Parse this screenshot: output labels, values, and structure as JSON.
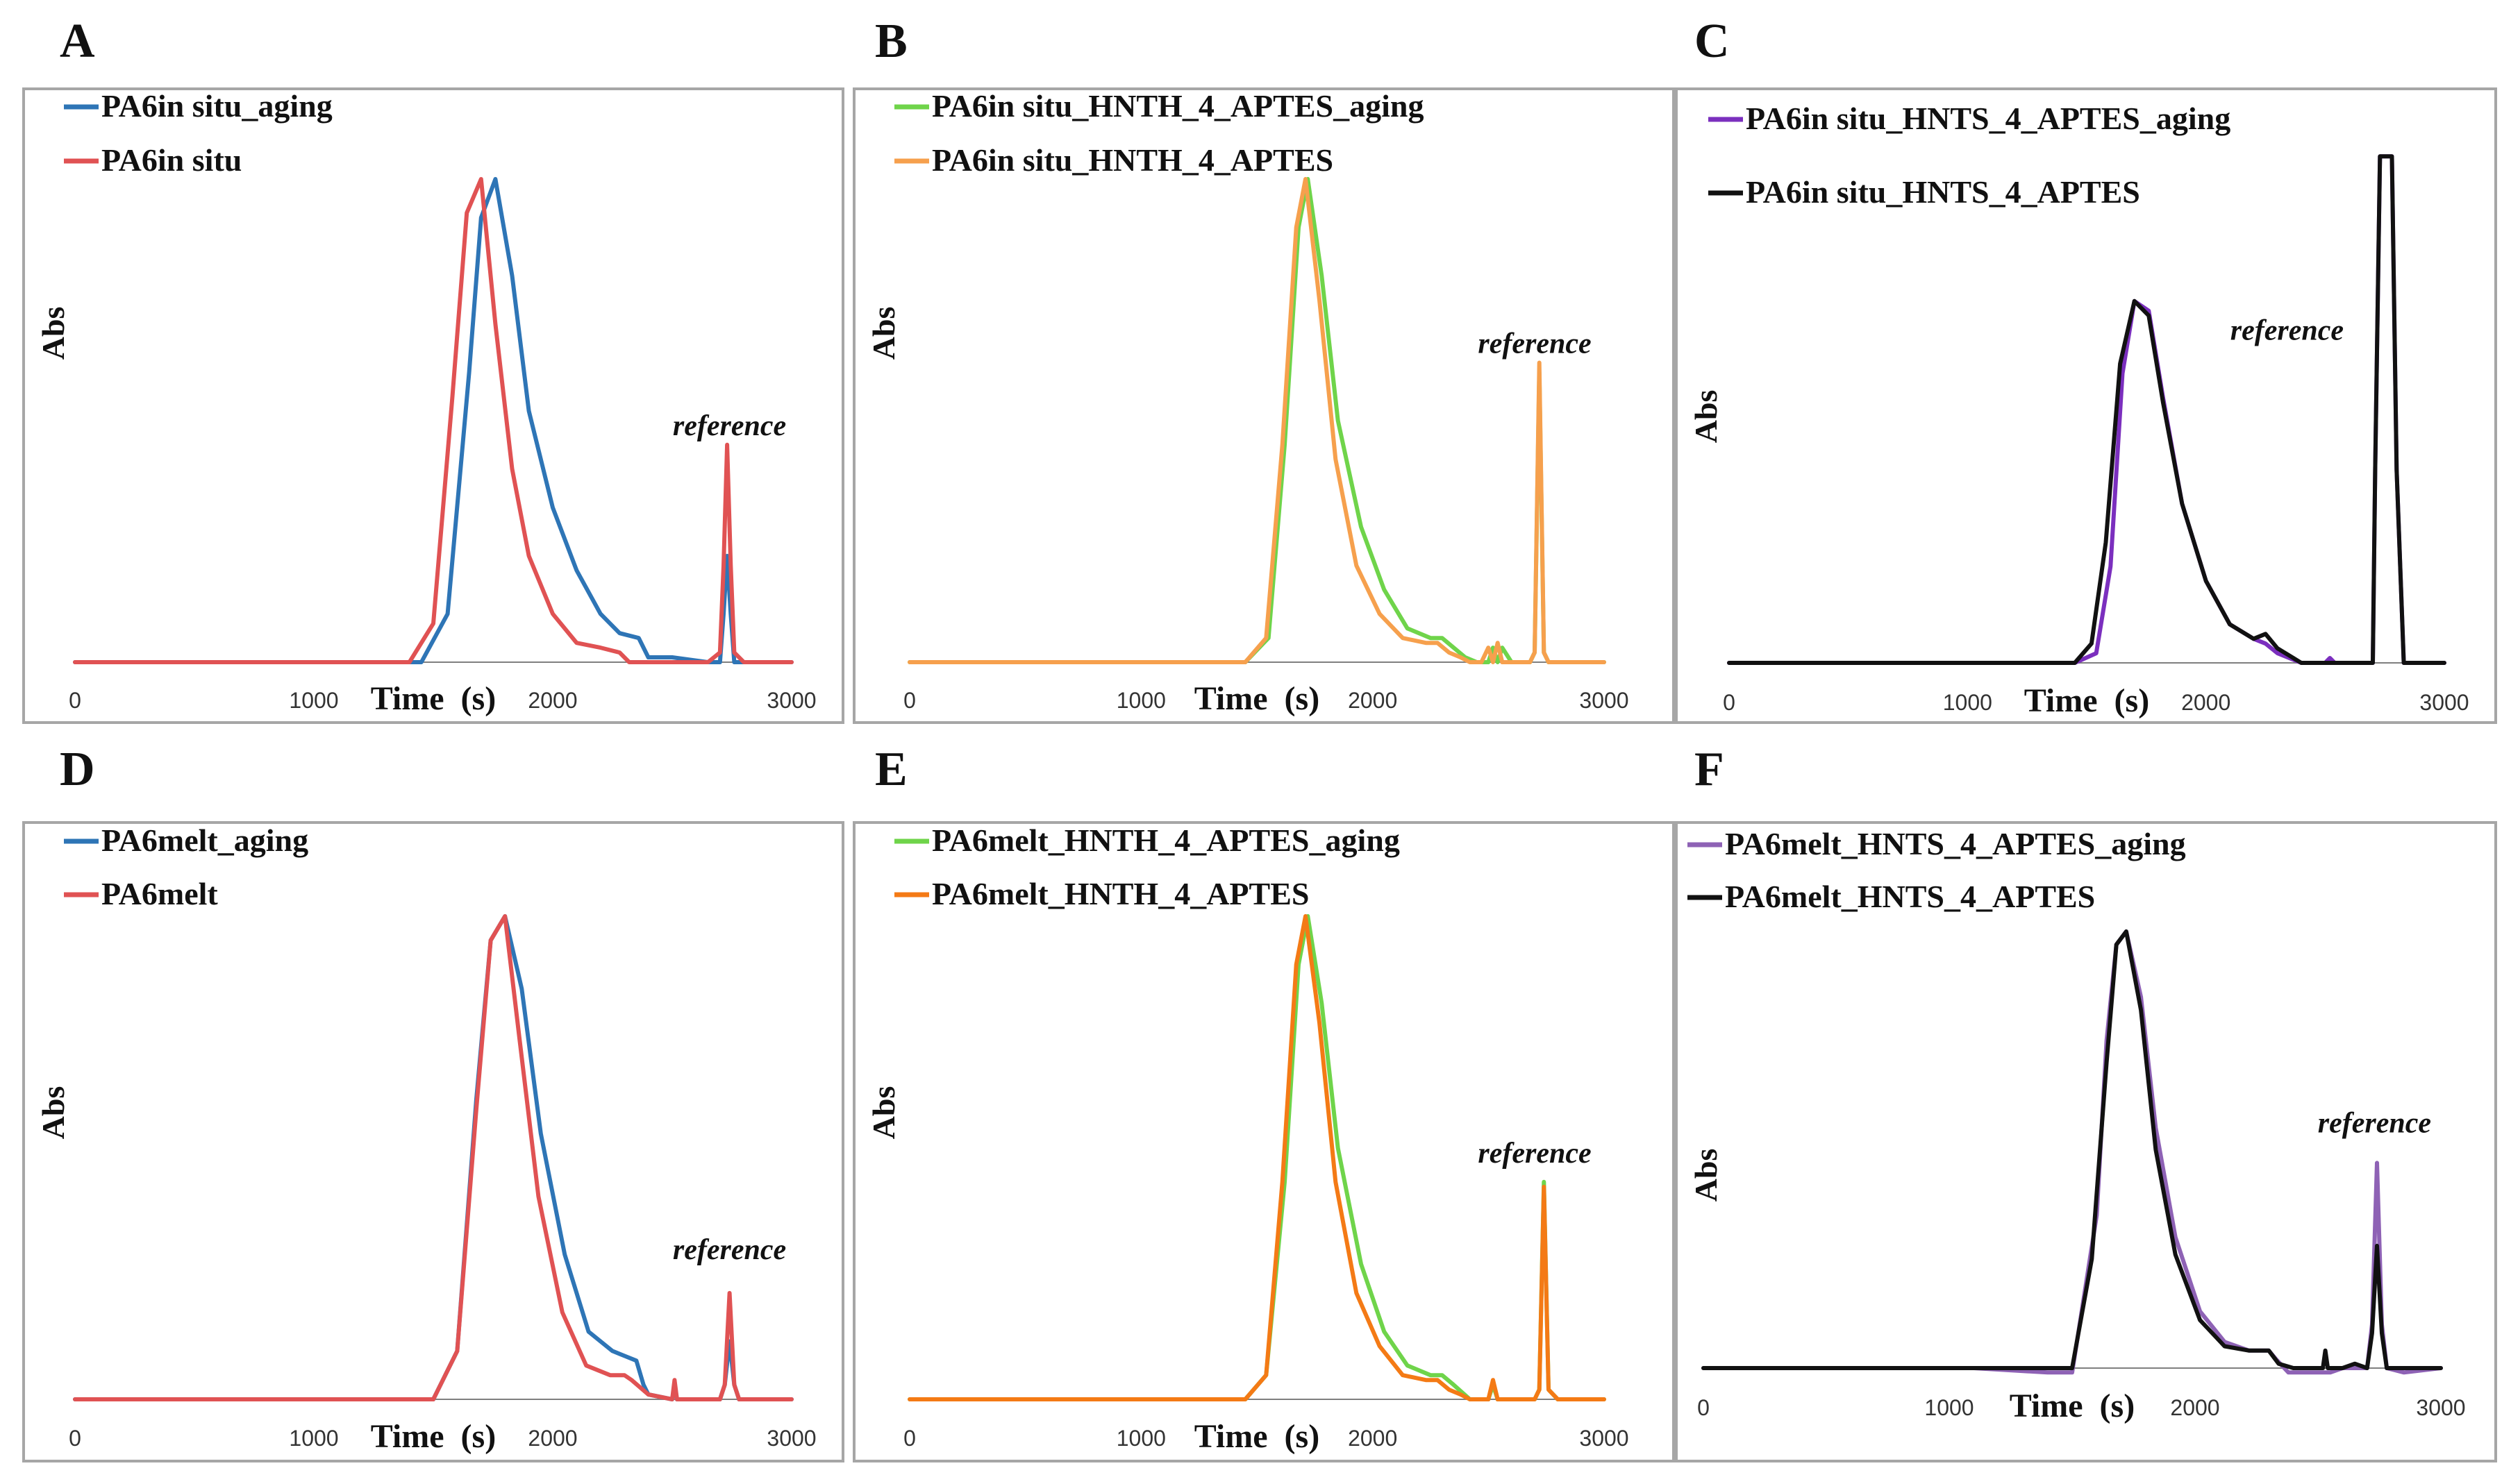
{
  "chart_data": [
    {
      "panel": "A",
      "type": "line",
      "xlabel": "Time (s)",
      "ylabel": "Abs",
      "xlim": [
        0,
        3000
      ],
      "xticks": [
        0,
        1000,
        2000,
        3000
      ],
      "ylim": [
        0,
        1.1
      ],
      "legend": "top-left",
      "annotation": {
        "text": "reference",
        "x": 2740,
        "y": 0.47
      },
      "series": [
        {
          "name": "PA6in situ_aging",
          "color": "#2e75b6",
          "x": [
            0,
            1450,
            1560,
            1650,
            1700,
            1760,
            1830,
            1900,
            2000,
            2100,
            2200,
            2280,
            2360,
            2400,
            2500,
            2650,
            2700,
            2715,
            2730,
            2745,
            2760,
            2800,
            3000
          ],
          "y": [
            0,
            0,
            0.1,
            0.6,
            0.92,
            1.0,
            0.8,
            0.52,
            0.32,
            0.19,
            0.1,
            0.06,
            0.05,
            0.01,
            0.01,
            0.0,
            0.0,
            0.1,
            0.22,
            0.1,
            0.0,
            0.0,
            0.0
          ]
        },
        {
          "name": "PA6in situ",
          "color": "#e05253",
          "x": [
            0,
            1400,
            1500,
            1580,
            1640,
            1700,
            1760,
            1830,
            1900,
            2000,
            2100,
            2200,
            2280,
            2320,
            2650,
            2700,
            2715,
            2730,
            2745,
            2760,
            2800,
            3000
          ],
          "y": [
            0,
            0,
            0.08,
            0.55,
            0.93,
            1.0,
            0.7,
            0.4,
            0.22,
            0.1,
            0.04,
            0.03,
            0.02,
            0.0,
            0.0,
            0.02,
            0.2,
            0.45,
            0.2,
            0.02,
            0.0,
            0.0
          ]
        }
      ]
    },
    {
      "panel": "B",
      "type": "line",
      "xlabel": "Time (s)",
      "ylabel": "Abs",
      "xlim": [
        0,
        3000
      ],
      "xticks": [
        0,
        1000,
        2000,
        3000
      ],
      "ylim": [
        0,
        1.1
      ],
      "legend": "top-left",
      "annotation": {
        "text": "reference",
        "x": 2700,
        "y": 0.64
      },
      "series": [
        {
          "name": "PA6in situ_HNTH_4_APTES_aging",
          "color": "#6fd44a",
          "x": [
            0,
            1450,
            1550,
            1620,
            1680,
            1720,
            1780,
            1850,
            1950,
            2050,
            2150,
            2250,
            2300,
            2350,
            2400,
            2450,
            2500,
            2520,
            2540,
            2560,
            2600,
            2680,
            2700,
            2720,
            2740,
            2760,
            2800,
            3000
          ],
          "y": [
            0,
            0,
            0.05,
            0.45,
            0.9,
            1.0,
            0.8,
            0.5,
            0.28,
            0.15,
            0.07,
            0.05,
            0.05,
            0.03,
            0.01,
            0.0,
            0.0,
            0.03,
            0.0,
            0.03,
            0.0,
            0.0,
            0.02,
            0.6,
            0.02,
            0.0,
            0.0,
            0.0
          ]
        },
        {
          "name": "PA6in situ_HNTH_4_APTES",
          "color": "#f6a04d",
          "x": [
            0,
            1450,
            1540,
            1610,
            1670,
            1710,
            1770,
            1840,
            1930,
            2030,
            2130,
            2230,
            2280,
            2330,
            2380,
            2420,
            2470,
            2500,
            2520,
            2540,
            2560,
            2600,
            2680,
            2700,
            2720,
            2740,
            2760,
            2800,
            3000
          ],
          "y": [
            0,
            0,
            0.05,
            0.45,
            0.9,
            1.0,
            0.75,
            0.42,
            0.2,
            0.1,
            0.05,
            0.04,
            0.04,
            0.02,
            0.01,
            0.0,
            0.0,
            0.03,
            0.0,
            0.04,
            0.0,
            0.0,
            0.0,
            0.02,
            0.62,
            0.02,
            0.0,
            0.0,
            0.0
          ]
        }
      ]
    },
    {
      "panel": "C",
      "type": "line",
      "xlabel": "Time (s)",
      "ylabel": "Abs",
      "xlim": [
        0,
        3000
      ],
      "xticks": [
        0,
        1000,
        2000,
        3000
      ],
      "ylim": [
        0,
        1.1
      ],
      "legend": "top-left",
      "annotation": {
        "text": "reference",
        "x": 2340,
        "y": 0.67
      },
      "series": [
        {
          "name": "PA6in situ_HNTS_4_APTES_aging",
          "color": "#7b2fbe",
          "x": [
            0,
            1450,
            1540,
            1600,
            1650,
            1700,
            1760,
            1820,
            1900,
            2000,
            2100,
            2200,
            2250,
            2300,
            2400,
            2500,
            2520,
            2540,
            2600,
            2700,
            2710,
            2730,
            2750,
            2780,
            2800,
            2830,
            3000
          ],
          "y": [
            0,
            0,
            0.02,
            0.2,
            0.6,
            0.75,
            0.73,
            0.55,
            0.33,
            0.17,
            0.08,
            0.05,
            0.04,
            0.02,
            0.0,
            0.0,
            0.01,
            0.0,
            0.0,
            0.0,
            0.4,
            1.05,
            1.05,
            1.05,
            0.4,
            0.0,
            0.0
          ]
        },
        {
          "name": "PA6in situ_HNTS_4_APTES",
          "color": "#111111",
          "x": [
            0,
            1450,
            1520,
            1580,
            1640,
            1700,
            1760,
            1820,
            1900,
            2000,
            2100,
            2200,
            2250,
            2300,
            2400,
            2500,
            2600,
            2700,
            2710,
            2730,
            2750,
            2780,
            2800,
            2830,
            3000
          ],
          "y": [
            0,
            0,
            0.04,
            0.25,
            0.62,
            0.75,
            0.72,
            0.54,
            0.33,
            0.17,
            0.08,
            0.05,
            0.06,
            0.03,
            0.0,
            0.0,
            0.0,
            0.0,
            0.4,
            1.05,
            1.05,
            1.05,
            0.4,
            0.0,
            0.0
          ]
        }
      ]
    },
    {
      "panel": "D",
      "type": "line",
      "xlabel": "Time (s)",
      "ylabel": "Abs",
      "xlim": [
        0,
        3000
      ],
      "xticks": [
        0,
        1000,
        2000,
        3000
      ],
      "ylim": [
        0,
        1.1
      ],
      "legend": "top-left",
      "annotation": {
        "text": "reference",
        "x": 2740,
        "y": 0.29
      },
      "series": [
        {
          "name": "PA6melt_aging",
          "color": "#2e75b6",
          "x": [
            0,
            1500,
            1600,
            1680,
            1740,
            1800,
            1870,
            1950,
            2050,
            2150,
            2250,
            2300,
            2350,
            2380,
            2400,
            2500,
            2510,
            2520,
            2530,
            2600,
            2700,
            2720,
            2740,
            2760,
            2780,
            2800,
            3000
          ],
          "y": [
            0,
            0,
            0.1,
            0.62,
            0.95,
            1.0,
            0.85,
            0.55,
            0.3,
            0.14,
            0.1,
            0.09,
            0.08,
            0.03,
            0.01,
            0.0,
            0.03,
            0.0,
            0.0,
            0.0,
            0.0,
            0.03,
            0.12,
            0.03,
            0.0,
            0.0,
            0.0
          ]
        },
        {
          "name": "PA6melt",
          "color": "#e05253",
          "x": [
            0,
            1500,
            1600,
            1680,
            1740,
            1800,
            1860,
            1940,
            2040,
            2140,
            2240,
            2300,
            2330,
            2400,
            2500,
            2510,
            2520,
            2530,
            2600,
            2700,
            2720,
            2740,
            2760,
            2780,
            2800,
            3000
          ],
          "y": [
            0,
            0,
            0.1,
            0.6,
            0.95,
            1.0,
            0.75,
            0.42,
            0.18,
            0.07,
            0.05,
            0.05,
            0.04,
            0.01,
            0.0,
            0.04,
            0.0,
            0.0,
            0.0,
            0.0,
            0.03,
            0.22,
            0.03,
            0.0,
            0.0,
            0.0
          ]
        }
      ]
    },
    {
      "panel": "E",
      "type": "line",
      "xlabel": "Time (s)",
      "ylabel": "Abs",
      "xlim": [
        0,
        3000
      ],
      "xticks": [
        0,
        1000,
        2000,
        3000
      ],
      "ylim": [
        0,
        1.1
      ],
      "legend": "top-left",
      "annotation": {
        "text": "reference",
        "x": 2700,
        "y": 0.49
      },
      "series": [
        {
          "name": "PA6melt_HNTH_4_APTES_aging",
          "color": "#6fd44a",
          "x": [
            0,
            1450,
            1540,
            1620,
            1680,
            1720,
            1780,
            1850,
            1950,
            2050,
            2150,
            2250,
            2300,
            2350,
            2420,
            2450,
            2500,
            2520,
            2540,
            2600,
            2700,
            2720,
            2740,
            2760,
            2800,
            3000
          ],
          "y": [
            0,
            0,
            0.05,
            0.45,
            0.9,
            1.0,
            0.82,
            0.52,
            0.28,
            0.14,
            0.07,
            0.05,
            0.05,
            0.03,
            0.0,
            0.0,
            0.0,
            0.03,
            0.0,
            0.0,
            0.0,
            0.02,
            0.45,
            0.02,
            0.0,
            0.0
          ]
        },
        {
          "name": "PA6melt_HNTH_4_APTES",
          "color": "#f47a15",
          "x": [
            0,
            1450,
            1540,
            1610,
            1670,
            1710,
            1770,
            1840,
            1930,
            2030,
            2130,
            2230,
            2280,
            2330,
            2380,
            2420,
            2500,
            2520,
            2540,
            2600,
            2700,
            2720,
            2740,
            2760,
            2800,
            3000
          ],
          "y": [
            0,
            0,
            0.05,
            0.45,
            0.9,
            1.0,
            0.78,
            0.45,
            0.22,
            0.11,
            0.05,
            0.04,
            0.04,
            0.02,
            0.01,
            0.0,
            0.0,
            0.04,
            0.0,
            0.0,
            0.0,
            0.02,
            0.44,
            0.02,
            0.0,
            0.0
          ]
        }
      ]
    },
    {
      "panel": "F",
      "type": "line",
      "xlabel": "Time (s)",
      "ylabel": "Abs",
      "xlim": [
        0,
        3000
      ],
      "xticks": [
        0,
        1000,
        2000,
        3000
      ],
      "ylim": [
        0,
        1.1
      ],
      "legend": "top-left",
      "annotation": {
        "text": "reference",
        "x": 2730,
        "y": 0.54
      },
      "series": [
        {
          "name": "PA6melt_HNTS_4_APTES_aging",
          "color": "#8e62b5",
          "x": [
            0,
            1100,
            1400,
            1500,
            1600,
            1640,
            1680,
            1720,
            1780,
            1840,
            1920,
            2020,
            2120,
            2220,
            2300,
            2330,
            2380,
            2400,
            2450,
            2550,
            2600,
            2700,
            2720,
            2740,
            2760,
            2780,
            2850,
            3000
          ],
          "y": [
            0,
            0,
            -0.01,
            -0.01,
            0.35,
            0.75,
            0.97,
            1.0,
            0.85,
            0.55,
            0.3,
            0.13,
            0.06,
            0.04,
            0.04,
            0.02,
            -0.01,
            -0.01,
            -0.01,
            -0.01,
            0.0,
            0.0,
            0.1,
            0.47,
            0.1,
            0.0,
            -0.01,
            0.0
          ]
        },
        {
          "name": "PA6melt_HNTS_4_APTES",
          "color": "#111111",
          "x": [
            0,
            1400,
            1500,
            1580,
            1640,
            1680,
            1720,
            1780,
            1840,
            1920,
            2020,
            2120,
            2220,
            2280,
            2300,
            2340,
            2400,
            2500,
            2520,
            2530,
            2540,
            2600,
            2650,
            2700,
            2720,
            2740,
            2760,
            2780,
            2850,
            3000
          ],
          "y": [
            0,
            0,
            0.0,
            0.25,
            0.7,
            0.97,
            1.0,
            0.82,
            0.5,
            0.26,
            0.11,
            0.05,
            0.04,
            0.04,
            0.04,
            0.01,
            0.0,
            0.0,
            0.0,
            0.04,
            0.0,
            0.0,
            0.01,
            0.0,
            0.08,
            0.28,
            0.08,
            0.0,
            0.0,
            0.0
          ]
        }
      ]
    }
  ]
}
